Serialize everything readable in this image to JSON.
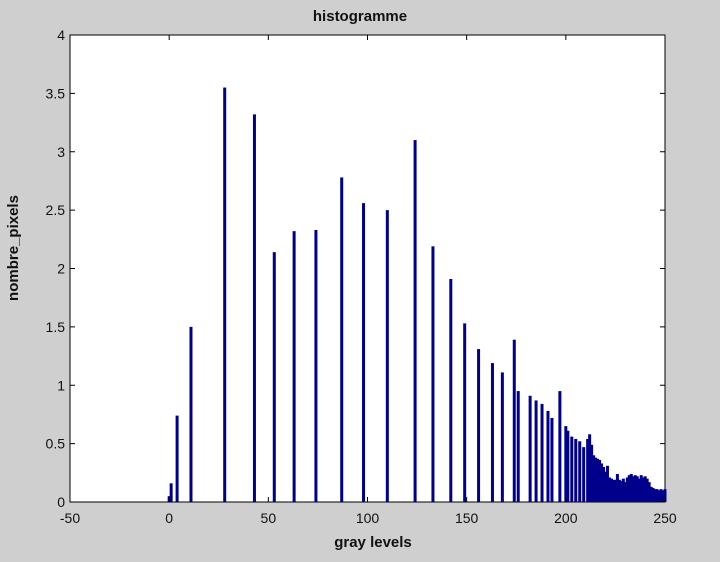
{
  "colors": {
    "figure_background": "#cfcfcf",
    "axes_background": "#ffffff",
    "bar_color": "#00008b",
    "axis_color": "#000000"
  },
  "chart_data": {
    "type": "bar",
    "title": "histogramme",
    "xlabel": "gray levels",
    "ylabel": "nombre_pixels",
    "xlim": [
      -50,
      250
    ],
    "ylim": [
      0,
      4
    ],
    "grid": false,
    "legend": "none",
    "x_ticks": [
      -50,
      0,
      50,
      100,
      150,
      200,
      250
    ],
    "x_tick_labels": [
      "-50",
      "0",
      "50",
      "100",
      "150",
      "200",
      "250"
    ],
    "y_ticks": [
      0,
      0.5,
      1,
      1.5,
      2,
      2.5,
      3,
      3.5,
      4
    ],
    "y_tick_labels": [
      "0",
      "0.5",
      "1",
      "1.5",
      "2",
      "2.5",
      "3",
      "3.5",
      "4"
    ],
    "x": [
      0,
      1,
      4,
      11,
      28,
      43,
      53,
      63,
      74,
      87,
      98,
      110,
      124,
      133,
      142,
      149,
      156,
      163,
      168,
      174,
      176,
      182,
      185,
      188,
      191,
      193,
      197,
      200,
      201,
      203,
      205,
      207,
      209,
      211,
      212,
      213,
      214,
      215,
      216,
      217,
      218,
      219,
      220,
      221,
      222,
      223,
      224,
      225,
      226,
      227,
      228,
      229,
      230,
      231,
      232,
      233,
      234,
      235,
      236,
      237,
      238,
      239,
      240,
      241,
      242,
      243,
      244,
      245,
      246,
      247,
      248,
      249,
      250
    ],
    "values": [
      0.05,
      0.16,
      0.74,
      1.5,
      3.55,
      3.32,
      2.14,
      2.32,
      2.33,
      2.78,
      2.56,
      2.5,
      3.1,
      2.19,
      1.91,
      1.53,
      1.31,
      1.19,
      1.11,
      1.39,
      0.95,
      0.91,
      0.87,
      0.84,
      0.78,
      0.72,
      0.95,
      0.65,
      0.61,
      0.56,
      0.54,
      0.52,
      0.47,
      0.54,
      0.58,
      0.49,
      0.4,
      0.38,
      0.37,
      0.36,
      0.33,
      0.3,
      0.26,
      0.31,
      0.21,
      0.2,
      0.19,
      0.19,
      0.24,
      0.19,
      0.18,
      0.2,
      0.17,
      0.21,
      0.23,
      0.24,
      0.22,
      0.23,
      0.22,
      0.2,
      0.23,
      0.21,
      0.22,
      0.2,
      0.17,
      0.13,
      0.12,
      0.11,
      0.11,
      0.1,
      0.11,
      0.1,
      0.11
    ]
  }
}
